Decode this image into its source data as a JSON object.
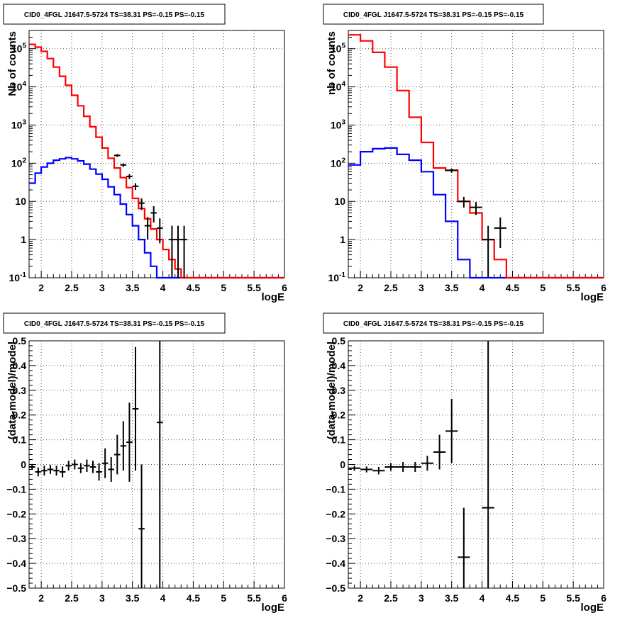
{
  "panels": [
    {
      "title": "CID0_4FGL J1647.5-5724 TS=38.31 PS=-0.15 PS=-0.15",
      "xlabel": "logE",
      "ylabel": "Nb of counts"
    },
    {
      "title": "CID0_4FGL J1647.5-5724 TS=38.31 PS=-0.15 PS=-0.15",
      "xlabel": "logE",
      "ylabel": "nb of counts"
    },
    {
      "title": "CID0_4FGL J1647.5-5724 TS=38.31 PS=-0.15 PS=-0.15",
      "xlabel": "logE",
      "ylabel": "(data-model)/model"
    },
    {
      "title": "CID0_4FGL J1647.5-5724 TS=38.31 PS=-0.15 PS=-0.15",
      "xlabel": "logE",
      "ylabel": "(data-model)/model"
    }
  ],
  "colors": {
    "total_model": "#ff0000",
    "source_model": "#0000ff",
    "data": "#000000",
    "grid": "#555555"
  },
  "chart_data": [
    {
      "type": "line",
      "step": true,
      "title": "CID0_4FGL J1647.5-5724 TS=38.31 PS=-0.15 PS=-0.15",
      "xlabel": "logE",
      "ylabel": "Nb of counts",
      "yscale": "log",
      "xlim": [
        1.8,
        6.0
      ],
      "ylim": [
        0.1,
        300000
      ],
      "grid": true,
      "xticks": [
        "2",
        "2.5",
        "3",
        "3.5",
        "4",
        "4.5",
        "5",
        "5.5",
        "6"
      ],
      "yticks": [
        "10^-1",
        "1",
        "10",
        "10^2",
        "10^3",
        "10^4",
        "10^5"
      ],
      "bin_edges": [
        1.8,
        1.9,
        2.0,
        2.1,
        2.2,
        2.3,
        2.4,
        2.5,
        2.6,
        2.7,
        2.8,
        2.9,
        3.0,
        3.1,
        3.2,
        3.3,
        3.4,
        3.5,
        3.6,
        3.7,
        3.8,
        3.9,
        4.0,
        4.1,
        4.2,
        4.3,
        4.4,
        4.5,
        4.6,
        4.7,
        4.8,
        4.9,
        5.0,
        5.1,
        5.2,
        5.3,
        5.4,
        5.5,
        5.6,
        5.7,
        5.8,
        5.9,
        6.0
      ],
      "series": [
        {
          "values": [
            130000,
            110000,
            85000,
            55000,
            33000,
            19000,
            11000,
            6000,
            3200,
            1700,
            900,
            480,
            250,
            135,
            75,
            42,
            23,
            12,
            6.5,
            3.5,
            1.9,
            1.0,
            0.55,
            0.3,
            0.17,
            0.1,
            0.1,
            0.1,
            0.1,
            0.1,
            0.1,
            0.1,
            0.1,
            0.1,
            0.1,
            0.1,
            0.1,
            0.1,
            0.1,
            0.1,
            0.1,
            0.1
          ]
        },
        {
          "values": [
            30,
            55,
            80,
            100,
            120,
            130,
            140,
            130,
            115,
            95,
            70,
            52,
            38,
            24,
            15,
            8.5,
            4.5,
            2.3,
            1.0,
            0.45,
            0.2,
            0.1,
            0.1,
            0.1,
            0.1,
            0.1,
            0.1,
            0.1,
            0.1,
            0.1,
            0.1,
            0.1,
            0.1,
            0.1,
            0.1,
            0.1,
            0.1,
            0.1,
            0.1,
            0.1,
            0.1,
            0.1
          ]
        },
        {
          "type": "errorbar",
          "x": [
            3.25,
            3.35,
            3.45,
            3.55,
            3.65,
            3.75,
            3.85,
            3.95,
            4.15,
            4.25,
            4.35
          ],
          "y": [
            160,
            90,
            45,
            25,
            9,
            2.3,
            5,
            2,
            1,
            1,
            1
          ],
          "yerr_lo": [
            13,
            9.5,
            6.7,
            5,
            3,
            1.3,
            2.2,
            1.2,
            0.9,
            0.9,
            0.9
          ],
          "yerr_hi": [
            13,
            9.5,
            6.7,
            5,
            3,
            1.6,
            2.5,
            1.6,
            1.3,
            1.3,
            1.3
          ]
        }
      ]
    },
    {
      "type": "line",
      "step": true,
      "title": "CID0_4FGL J1647.5-5724 TS=38.31 PS=-0.15 PS=-0.15",
      "xlabel": "logE",
      "ylabel": "nb of counts",
      "yscale": "log",
      "xlim": [
        1.8,
        6.0
      ],
      "ylim": [
        0.1,
        300000
      ],
      "grid": true,
      "xticks": [
        "2",
        "2.5",
        "3",
        "3.5",
        "4",
        "4.5",
        "5",
        "5.5",
        "6"
      ],
      "yticks": [
        "10^-1",
        "1",
        "10",
        "10^2",
        "10^3",
        "10^4",
        "10^5"
      ],
      "bin_edges": [
        1.8,
        2.0,
        2.2,
        2.4,
        2.6,
        2.8,
        3.0,
        3.2,
        3.4,
        3.6,
        3.8,
        4.0,
        4.2,
        4.4,
        4.6,
        4.8,
        5.0,
        5.2,
        5.4,
        5.6,
        5.8,
        6.0
      ],
      "series": [
        {
          "values": [
            230000,
            160000,
            80000,
            33000,
            8000,
            1600,
            350,
            75,
            65,
            10,
            5,
            1.0,
            0.3,
            0.1,
            0.1,
            0.1,
            0.1,
            0.1,
            0.1,
            0.1,
            0.1
          ]
        },
        {
          "values": [
            90,
            200,
            240,
            250,
            170,
            120,
            60,
            15,
            3,
            0.3,
            0.1,
            0.1,
            0.1,
            0.1,
            0.1,
            0.1,
            0.1,
            0.1,
            0.1,
            0.1,
            0.1
          ]
        },
        {
          "type": "errorbar",
          "x": [
            3.5,
            3.7,
            3.9,
            4.1,
            4.3
          ],
          "y": [
            65,
            10,
            7,
            1,
            2
          ],
          "yerr_lo": [
            8,
            3.1,
            2.6,
            0.9,
            1.4
          ],
          "yerr_hi": [
            8,
            3.1,
            2.6,
            1.3,
            1.8
          ]
        }
      ]
    },
    {
      "type": "scatter",
      "errorbars": true,
      "title": "CID0_4FGL J1647.5-5724 TS=38.31 PS=-0.15 PS=-0.15",
      "xlabel": "logE",
      "ylabel": "(data-model)/model",
      "xlim": [
        1.8,
        6.0
      ],
      "ylim": [
        -0.5,
        0.5
      ],
      "grid": true,
      "xticks": [
        "2",
        "2.5",
        "3",
        "3.5",
        "4",
        "4.5",
        "5",
        "5.5",
        "6"
      ],
      "yticks": [
        "-0.5",
        "-0.4",
        "-0.3",
        "-0.2",
        "-0.1",
        "0",
        "0.1",
        "0.2",
        "0.3",
        "0.4",
        "0.5"
      ],
      "points": [
        {
          "x": 1.85,
          "y": -0.01,
          "e": 0.012
        },
        {
          "x": 1.95,
          "y": -0.03,
          "e": 0.018
        },
        {
          "x": 2.05,
          "y": -0.025,
          "e": 0.02
        },
        {
          "x": 2.15,
          "y": -0.02,
          "e": 0.018
        },
        {
          "x": 2.25,
          "y": -0.025,
          "e": 0.02
        },
        {
          "x": 2.35,
          "y": -0.03,
          "e": 0.022
        },
        {
          "x": 2.45,
          "y": -0.005,
          "e": 0.02
        },
        {
          "x": 2.55,
          "y": 0.0,
          "e": 0.02
        },
        {
          "x": 2.65,
          "y": -0.015,
          "e": 0.02
        },
        {
          "x": 2.75,
          "y": -0.005,
          "e": 0.025
        },
        {
          "x": 2.85,
          "y": -0.01,
          "e": 0.025
        },
        {
          "x": 2.95,
          "y": -0.03,
          "e": 0.035
        },
        {
          "x": 3.05,
          "y": 0.005,
          "e": 0.06
        },
        {
          "x": 3.15,
          "y": -0.02,
          "e": 0.05
        },
        {
          "x": 3.25,
          "y": 0.04,
          "e": 0.08
        },
        {
          "x": 3.35,
          "y": 0.075,
          "e": 0.1
        },
        {
          "x": 3.45,
          "y": 0.09,
          "e": 0.16
        },
        {
          "x": 3.55,
          "y": 0.225,
          "e": 0.25
        },
        {
          "x": 3.65,
          "y": -0.26,
          "e": 0.26
        },
        {
          "x": 3.95,
          "y": 0.17,
          "e": 0.9
        }
      ]
    },
    {
      "type": "scatter",
      "errorbars": true,
      "title": "CID0_4FGL J1647.5-5724 TS=38.31 PS=-0.15 PS=-0.15",
      "xlabel": "logE",
      "ylabel": "(data-model)/model",
      "xlim": [
        1.8,
        6.0
      ],
      "ylim": [
        -0.5,
        0.5
      ],
      "grid": true,
      "xticks": [
        "2",
        "2.5",
        "3",
        "3.5",
        "4",
        "4.5",
        "5",
        "5.5",
        "6"
      ],
      "yticks": [
        "-0.5",
        "-0.4",
        "-0.3",
        "-0.2",
        "-0.1",
        "0",
        "0.1",
        "0.2",
        "0.3",
        "0.4",
        "0.5"
      ],
      "points": [
        {
          "x": 1.9,
          "y": -0.015,
          "e": 0.01
        },
        {
          "x": 2.1,
          "y": -0.02,
          "e": 0.012
        },
        {
          "x": 2.3,
          "y": -0.025,
          "e": 0.015
        },
        {
          "x": 2.5,
          "y": -0.01,
          "e": 0.015
        },
        {
          "x": 2.7,
          "y": -0.01,
          "e": 0.02
        },
        {
          "x": 2.9,
          "y": -0.01,
          "e": 0.02
        },
        {
          "x": 3.1,
          "y": 0.005,
          "e": 0.03
        },
        {
          "x": 3.3,
          "y": 0.05,
          "e": 0.07
        },
        {
          "x": 3.5,
          "y": 0.135,
          "e": 0.13
        },
        {
          "x": 3.7,
          "y": -0.375,
          "e": 0.2
        },
        {
          "x": 4.1,
          "y": -0.175,
          "e": 0.9
        }
      ]
    }
  ]
}
